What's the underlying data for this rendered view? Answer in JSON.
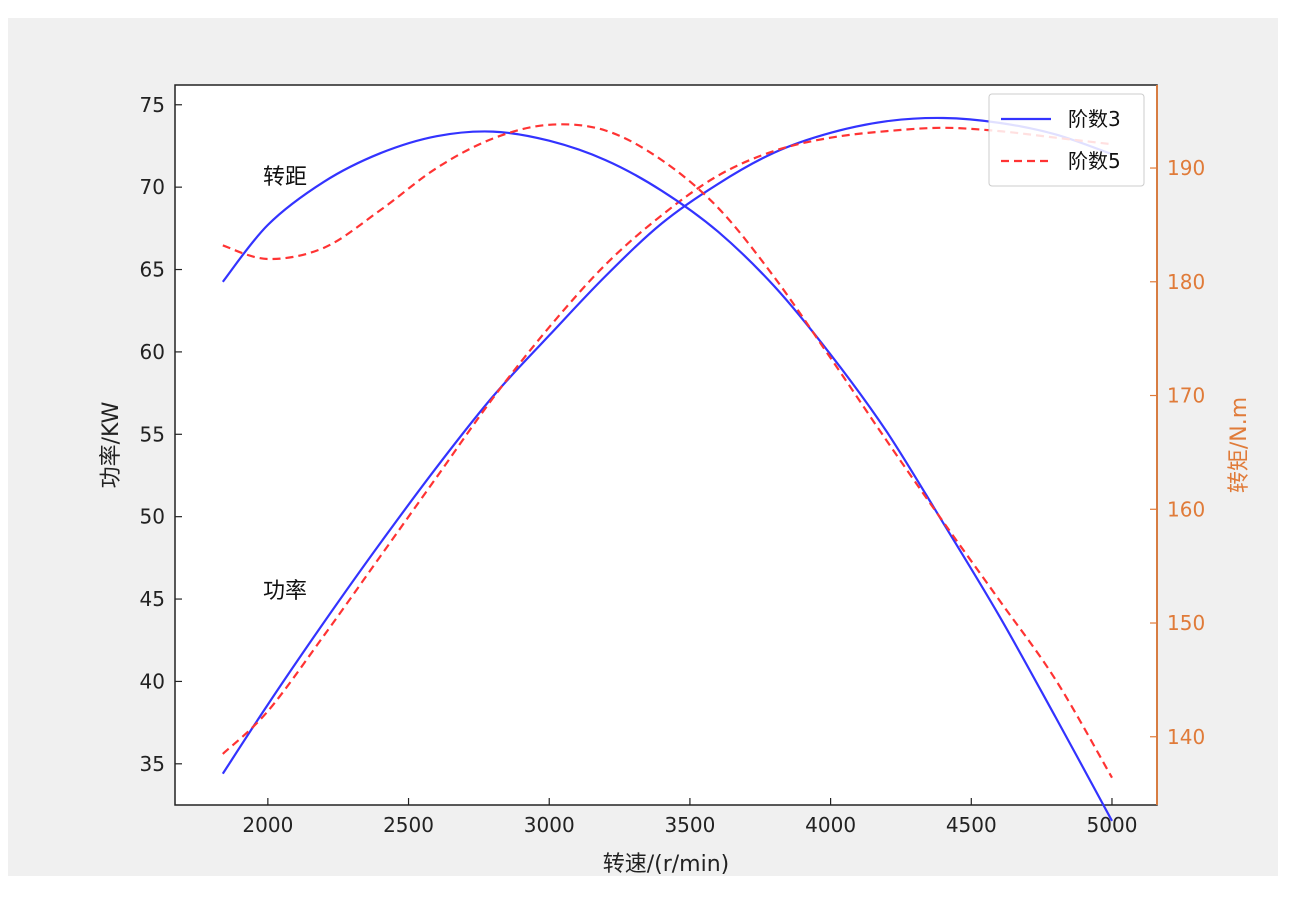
{
  "chart_data": {
    "type": "line",
    "xlabel": "转速/(r/min)",
    "ylabel_left": "功率/KW",
    "ylabel_right": "转矩/N.m",
    "xlim": [
      1670,
      5160
    ],
    "ylim_left": [
      32.5,
      76.2
    ],
    "ylim_right": [
      134.0,
      197.3
    ],
    "x_ticks": [
      2000,
      2500,
      3000,
      3500,
      4000,
      4500,
      5000
    ],
    "y_left_ticks": [
      35,
      40,
      45,
      50,
      55,
      60,
      65,
      70,
      75
    ],
    "y_right_ticks": [
      140,
      150,
      160,
      170,
      180,
      190
    ],
    "annotations": [
      {
        "text": "转距",
        "x": 2000,
        "y_left": 70.2
      },
      {
        "text": "功率",
        "x": 2000,
        "y_left": 45.0
      }
    ],
    "legend": {
      "position": "top-right",
      "entries": [
        "阶数3",
        "阶数5"
      ]
    },
    "colors": {
      "order3": "#3333ff",
      "order5": "#ff3333",
      "right_axis": "#e07b39",
      "frame_bg": "#f0f0f0"
    },
    "x": [
      1840,
      2000,
      2200,
      2400,
      2600,
      2800,
      3000,
      3200,
      3400,
      3600,
      3800,
      4000,
      4200,
      4400,
      4600,
      4800,
      5000
    ],
    "series": [
      {
        "name": "阶数3",
        "group": "power",
        "axis": "left",
        "style": "solid",
        "values": [
          34.4,
          38.6,
          43.6,
          48.4,
          53.0,
          57.3,
          61.0,
          64.6,
          67.8,
          70.2,
          72.1,
          73.3,
          74.0,
          74.2,
          73.9,
          73.2,
          72.0
        ]
      },
      {
        "name": "阶数5",
        "group": "power",
        "axis": "left",
        "style": "dashed",
        "values": [
          35.6,
          38.2,
          42.8,
          47.6,
          52.4,
          57.2,
          61.5,
          65.3,
          68.3,
          70.7,
          72.2,
          73.0,
          73.4,
          73.6,
          73.4,
          73.0,
          72.6
        ]
      },
      {
        "name": "阶数3",
        "group": "torque",
        "axis": "right",
        "style": "solid",
        "values": [
          180.0,
          185.0,
          188.8,
          191.3,
          192.8,
          193.2,
          192.4,
          190.7,
          188.0,
          184.4,
          179.6,
          173.6,
          166.8,
          158.8,
          150.6,
          141.7,
          132.6
        ]
      },
      {
        "name": "阶数5",
        "group": "torque",
        "axis": "right",
        "style": "dashed",
        "values": [
          183.2,
          182.0,
          183.0,
          186.3,
          190.0,
          192.6,
          193.8,
          193.3,
          190.7,
          186.5,
          180.4,
          173.3,
          166.0,
          158.9,
          152.0,
          145.0,
          136.4
        ]
      }
    ]
  }
}
